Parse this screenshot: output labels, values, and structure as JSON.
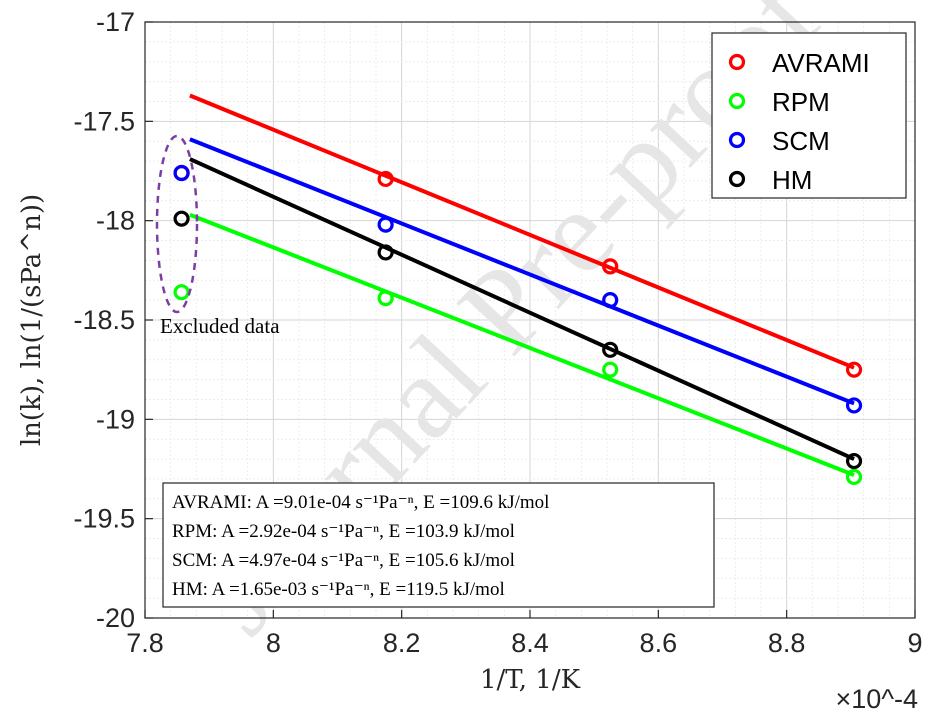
{
  "chart_data": {
    "type": "scatter",
    "xlabel": "1/T, 1/K",
    "ylabel": "ln(k), ln(1/(sPa^n))",
    "x_exponent": "×10^-4",
    "xlim": [
      7.8,
      9.0
    ],
    "ylim": [
      -20,
      -17
    ],
    "x_ticks": [
      "7.8",
      "8",
      "8.2",
      "8.4",
      "8.6",
      "8.8",
      "9"
    ],
    "y_ticks": [
      "-17",
      "-17.5",
      "-18",
      "-18.5",
      "-19",
      "-19.5",
      "-20"
    ],
    "grid": "minor",
    "legend_position": "top-right",
    "series": [
      {
        "name": "AVRAMI",
        "color": "#ff0000",
        "points": [
          [
            7.857,
            -17.76
          ],
          [
            8.175,
            -17.79
          ],
          [
            8.525,
            -18.23
          ],
          [
            8.905,
            -18.75
          ]
        ],
        "fit": [
          [
            7.87,
            -17.37
          ],
          [
            8.905,
            -18.74
          ]
        ]
      },
      {
        "name": "RPM",
        "color": "#00ff00",
        "points": [
          [
            7.857,
            -18.36
          ],
          [
            8.175,
            -18.39
          ],
          [
            8.525,
            -18.75
          ],
          [
            8.905,
            -19.29
          ]
        ],
        "fit": [
          [
            7.87,
            -17.97
          ],
          [
            8.905,
            -19.28
          ]
        ]
      },
      {
        "name": "SCM",
        "color": "#0000ff",
        "points": [
          [
            7.857,
            -17.76
          ],
          [
            8.175,
            -18.02
          ],
          [
            8.525,
            -18.4
          ],
          [
            8.905,
            -18.93
          ]
        ],
        "fit": [
          [
            7.87,
            -17.59
          ],
          [
            8.905,
            -18.92
          ]
        ]
      },
      {
        "name": "HM",
        "color": "#000000",
        "points": [
          [
            7.857,
            -17.99
          ],
          [
            8.175,
            -18.16
          ],
          [
            8.525,
            -18.65
          ],
          [
            8.905,
            -19.21
          ]
        ],
        "fit": [
          [
            7.87,
            -17.69
          ],
          [
            8.905,
            -19.2
          ]
        ]
      }
    ],
    "excluded_label": "Excluded data",
    "annotations": [
      "AVRAMI: A =9.01e-04 s⁻¹Pa⁻ⁿ, E =109.6 kJ/mol",
      "RPM: A =2.92e-04 s⁻¹Pa⁻ⁿ, E =103.9 kJ/mol",
      "SCM: A =4.97e-04 s⁻¹Pa⁻ⁿ, E =105.6 kJ/mol",
      "HM: A =1.65e-03 s⁻¹Pa⁻ⁿ, E =119.5 kJ/mol"
    ]
  },
  "watermark": "Journal Pre-proof"
}
